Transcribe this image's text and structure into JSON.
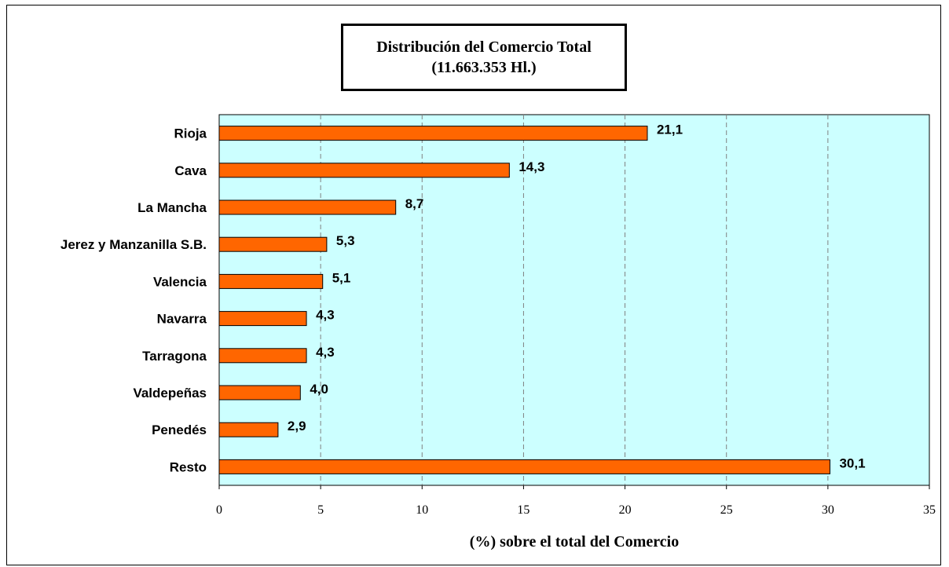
{
  "chart_data": {
    "type": "bar",
    "orientation": "horizontal",
    "title": "Distribución del Comercio Total",
    "subtitle": "(11.663.353 Hl.)",
    "xlabel": "(%) sobre el total del Comercio",
    "ylabel": "",
    "categories": [
      "Rioja",
      "Cava",
      "La Mancha",
      "Jerez y Manzanilla S.B.",
      "Valencia",
      "Navarra",
      "Tarragona",
      "Valdepeñas",
      "Penedés",
      "Resto"
    ],
    "values": [
      21.1,
      14.3,
      8.7,
      5.3,
      5.1,
      4.3,
      4.3,
      4.0,
      2.9,
      30.1
    ],
    "data_labels": [
      "21,1",
      "14,3",
      "8,7",
      "5,3",
      "5,1",
      "4,3",
      "4,3",
      "4,0",
      "2,9",
      "30,1"
    ],
    "xlim": [
      0,
      35
    ],
    "xticks": [
      0,
      5,
      10,
      15,
      20,
      25,
      30,
      35
    ],
    "grid": "vertical-dashed",
    "legend": "none",
    "colors": {
      "bar_fill": "#FF6600",
      "bar_stroke": "#000000",
      "plot_background": "#CCFFFF",
      "grid": "#808080"
    }
  }
}
